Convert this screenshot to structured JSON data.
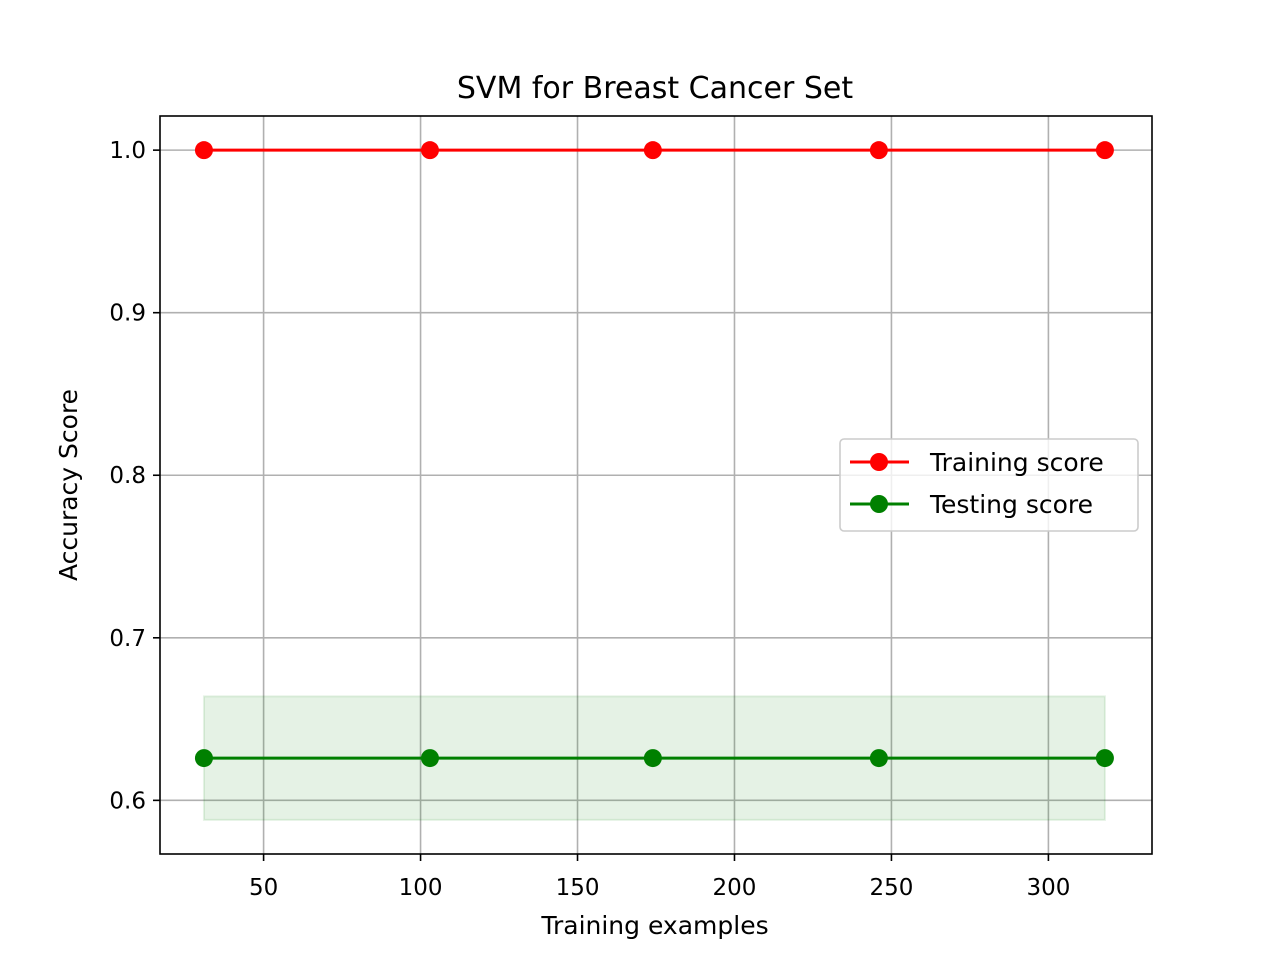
{
  "chart_data": {
    "type": "line",
    "title": "SVM for Breast Cancer Set",
    "xlabel": "Training examples",
    "ylabel": "Accuracy Score",
    "xlim": [
      17,
      333
    ],
    "ylim": [
      0.567,
      1.021
    ],
    "x_ticks": [
      50,
      100,
      150,
      200,
      250,
      300
    ],
    "x_tick_labels": [
      "50",
      "100",
      "150",
      "200",
      "250",
      "300"
    ],
    "y_ticks": [
      0.6,
      0.7,
      0.8,
      0.9,
      1.0
    ],
    "y_tick_labels": [
      "0.6",
      "0.7",
      "0.8",
      "0.9",
      "1.0"
    ],
    "grid": true,
    "legend_position": "center-right",
    "x": [
      31,
      103,
      174,
      246,
      318
    ],
    "series": [
      {
        "name": "Training score",
        "color": "#ff0000",
        "values": [
          1.0,
          1.0,
          1.0,
          1.0,
          1.0
        ],
        "band_lower": [
          1.0,
          1.0,
          1.0,
          1.0,
          1.0
        ],
        "band_upper": [
          1.0,
          1.0,
          1.0,
          1.0,
          1.0
        ]
      },
      {
        "name": "Testing score",
        "color": "#008000",
        "values": [
          0.626,
          0.626,
          0.626,
          0.626,
          0.626
        ],
        "band_lower": [
          0.588,
          0.588,
          0.588,
          0.588,
          0.588
        ],
        "band_upper": [
          0.664,
          0.664,
          0.664,
          0.664,
          0.664
        ]
      }
    ]
  }
}
